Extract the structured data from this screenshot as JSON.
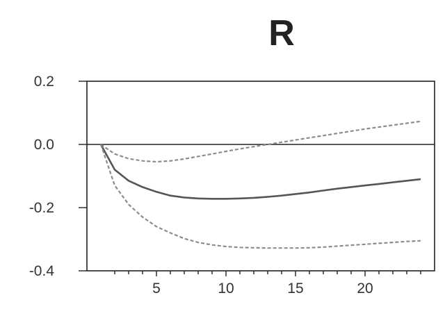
{
  "chart_data": {
    "type": "line",
    "title": "R",
    "xlabel": "",
    "ylabel": "",
    "xlim": [
      0,
      25
    ],
    "ylim": [
      -0.4,
      0.2
    ],
    "x_ticks": [
      5,
      10,
      15,
      20
    ],
    "x_tick_labels": [
      "5",
      "10",
      "15",
      "20"
    ],
    "y_ticks": [
      0.2,
      0.0,
      -0.2,
      -0.4
    ],
    "y_tick_labels": [
      "0.2",
      "0.0",
      "-0.2",
      "-0.4"
    ],
    "grid": false,
    "zero_line": true,
    "series": [
      {
        "style": "dashed",
        "color": "#8c8c8c",
        "x": [
          1,
          2,
          3,
          4,
          5,
          6,
          7,
          8,
          9,
          10,
          11,
          12,
          13,
          14,
          15,
          16,
          17,
          18,
          19,
          20,
          21,
          22,
          23,
          24
        ],
        "values": [
          0.0,
          -0.03,
          -0.045,
          -0.052,
          -0.055,
          -0.052,
          -0.046,
          -0.038,
          -0.03,
          -0.022,
          -0.014,
          -0.007,
          0.0,
          0.007,
          0.014,
          0.021,
          0.028,
          0.035,
          0.042,
          0.049,
          0.055,
          0.061,
          0.067,
          0.073
        ]
      },
      {
        "style": "solid",
        "color": "#555555",
        "x": [
          1,
          2,
          3,
          4,
          5,
          6,
          7,
          8,
          9,
          10,
          11,
          12,
          13,
          14,
          15,
          16,
          17,
          18,
          19,
          20,
          21,
          22,
          23,
          24
        ],
        "values": [
          0.0,
          -0.08,
          -0.115,
          -0.135,
          -0.15,
          -0.162,
          -0.168,
          -0.171,
          -0.172,
          -0.172,
          -0.171,
          -0.169,
          -0.166,
          -0.162,
          -0.157,
          -0.152,
          -0.146,
          -0.14,
          -0.135,
          -0.13,
          -0.125,
          -0.12,
          -0.115,
          -0.11
        ]
      },
      {
        "style": "dashed",
        "color": "#8c8c8c",
        "x": [
          1,
          2,
          3,
          4,
          5,
          6,
          7,
          8,
          9,
          10,
          11,
          12,
          13,
          14,
          15,
          16,
          17,
          18,
          19,
          20,
          21,
          22,
          23,
          24
        ],
        "values": [
          0.0,
          -0.13,
          -0.19,
          -0.23,
          -0.26,
          -0.28,
          -0.298,
          -0.31,
          -0.318,
          -0.323,
          -0.326,
          -0.327,
          -0.328,
          -0.328,
          -0.328,
          -0.327,
          -0.325,
          -0.322,
          -0.319,
          -0.316,
          -0.313,
          -0.31,
          -0.307,
          -0.305
        ]
      }
    ]
  }
}
